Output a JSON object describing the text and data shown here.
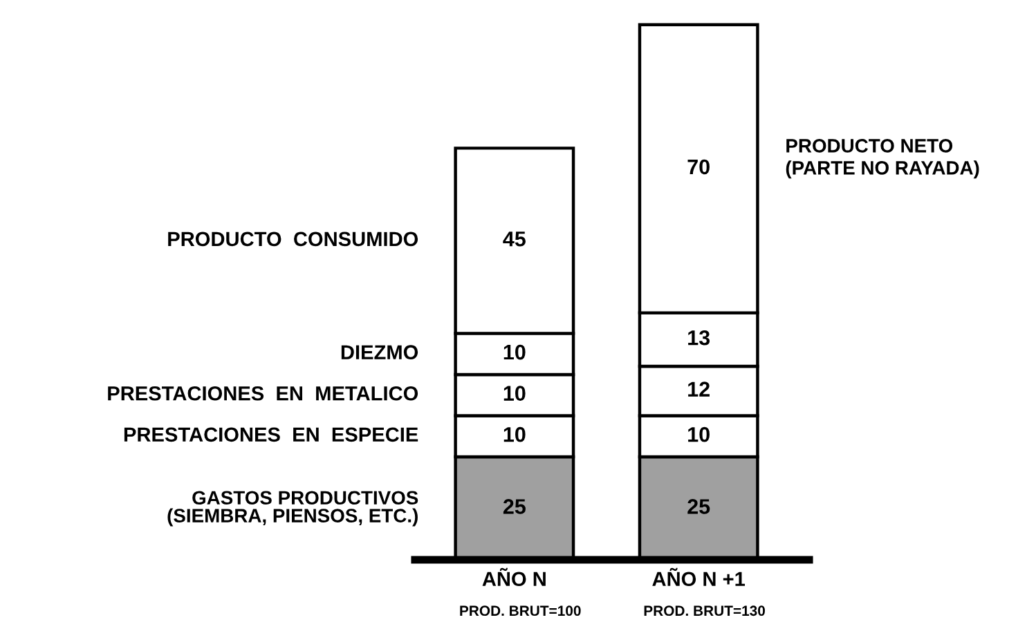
{
  "chart_data": {
    "type": "bar",
    "stacked": true,
    "data_labels": true,
    "grid": false,
    "categories": [
      "AÑO N",
      "AÑO N +1"
    ],
    "series": [
      {
        "name": "GASTOS PRODUCTIVOS\n(SIEMBRA, PIENSOS, ETC.)",
        "color": "#a0a0a0",
        "values": [
          25,
          25
        ]
      },
      {
        "name": "PRESTACIONES  EN  ESPECIE",
        "color": "#ffffff",
        "values": [
          10,
          10
        ]
      },
      {
        "name": "PRESTACIONES  EN  METALICO",
        "color": "#ffffff",
        "values": [
          10,
          12
        ]
      },
      {
        "name": "DIEZMO",
        "color": "#ffffff",
        "values": [
          10,
          13
        ]
      },
      {
        "name": "PRODUCTO  CONSUMIDO",
        "color": "#ffffff",
        "values": [
          45,
          70
        ]
      }
    ],
    "annotations": [
      "PROD. BRUT=100",
      "PROD. BRUT=130",
      "PRODUCTO NETO\n(PARTE NO RAYADA)"
    ]
  }
}
